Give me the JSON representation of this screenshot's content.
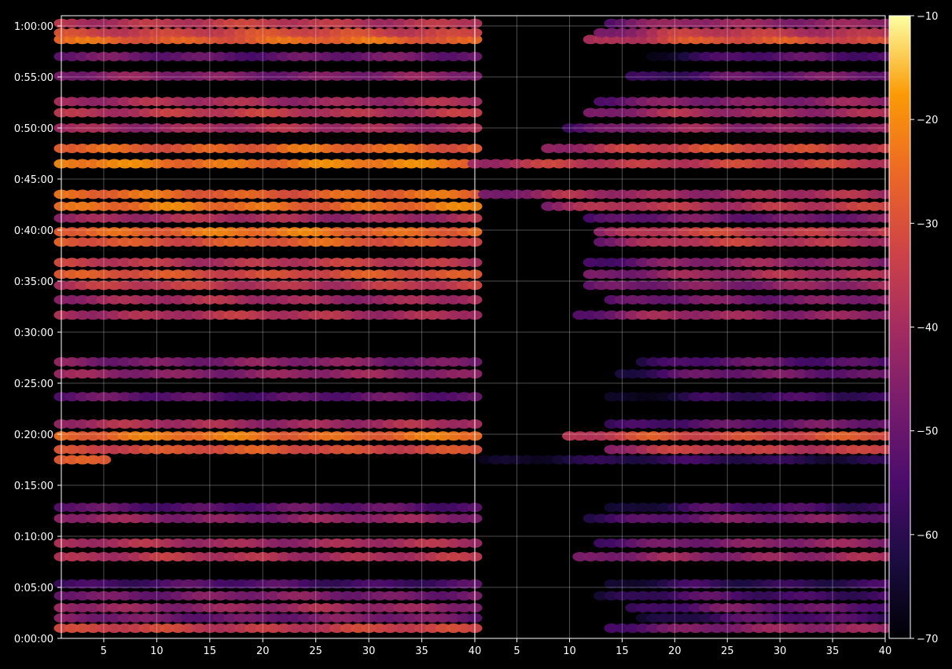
{
  "chart_data": {
    "type": "heatmap",
    "title": "",
    "xlabel": "",
    "ylabel": "",
    "panels": [
      {
        "name": "",
        "x_range": [
          1,
          40
        ],
        "x_ticks": [
          "5",
          "10",
          "15",
          "20",
          "25",
          "30",
          "35",
          "40"
        ]
      },
      {
        "name": "",
        "x_range": [
          1,
          40
        ],
        "x_ticks": [
          "5",
          "10",
          "15",
          "20",
          "25",
          "30",
          "35",
          "40"
        ]
      }
    ],
    "y_range_seconds": [
      0,
      3660
    ],
    "y_ticks": [
      "0:00:00",
      "0:05:00",
      "0:10:00",
      "0:15:00",
      "0:20:00",
      "0:25:00",
      "0:30:00",
      "0:35:00",
      "0:40:00",
      "0:45:00",
      "0:50:00",
      "0:55:00",
      "1:00:00"
    ],
    "grid": true,
    "colormap": "inferno",
    "colorbar": {
      "range": [
        -70,
        -10
      ],
      "ticks": [
        "−70",
        "−60",
        "−50",
        "−40",
        "−30",
        "−20",
        "−10"
      ]
    },
    "bands": [
      {
        "t": 60,
        "panel1": -34,
        "panel2_start": 14,
        "panel2": -44
      },
      {
        "t": 120,
        "panel1": -48,
        "panel2_start": 17,
        "panel2": -55
      },
      {
        "t": 180,
        "panel1": -42,
        "panel2_start": 16,
        "panel2": -50
      },
      {
        "t": 250,
        "panel1": -47,
        "panel2_start": 13,
        "panel2": -55
      },
      {
        "t": 320,
        "panel1": -55,
        "panel2_start": 14,
        "panel2": -58
      },
      {
        "t": 480,
        "panel1": -38,
        "panel2_start": 11,
        "panel2": -42
      },
      {
        "t": 560,
        "panel1": -40,
        "panel2_start": 13,
        "panel2": -45
      },
      {
        "t": 705,
        "panel1": -44,
        "panel2_start": 12,
        "panel2": -48
      },
      {
        "t": 770,
        "panel1": -52,
        "panel2_start": 14,
        "panel2": -56
      },
      {
        "t": 1050,
        "panel1": -28,
        "panel2_start": 1,
        "panel2": -60,
        "panel1_end": 5
      },
      {
        "t": 1110,
        "panel1": -30,
        "panel2_start": 14,
        "panel2": -34
      },
      {
        "t": 1190,
        "panel1": -24,
        "panel2_start": 10,
        "panel2": -30
      },
      {
        "t": 1260,
        "panel1": -40,
        "panel2_start": 14,
        "panel2": -50
      },
      {
        "t": 1420,
        "panel1": -52,
        "panel2_start": 14,
        "panel2": -58
      },
      {
        "t": 1555,
        "panel1": -44,
        "panel2_start": 15,
        "panel2": -50
      },
      {
        "t": 1625,
        "panel1": -46,
        "panel2_start": 17,
        "panel2": -52
      },
      {
        "t": 1900,
        "panel1": -38,
        "panel2_start": 11,
        "panel2": -42
      },
      {
        "t": 1990,
        "panel1": -40,
        "panel2_start": 14,
        "panel2": -46
      },
      {
        "t": 2075,
        "panel1": -36,
        "panel2_start": 12,
        "panel2": -44
      },
      {
        "t": 2140,
        "panel1": -30,
        "panel2_start": 12,
        "panel2": -40
      },
      {
        "t": 2210,
        "panel1": -36,
        "panel2_start": 12,
        "panel2": -44
      },
      {
        "t": 2330,
        "panel1": -28,
        "panel2_start": 13,
        "panel2": -36
      },
      {
        "t": 2390,
        "panel1": -24,
        "panel2_start": 13,
        "panel2": -34
      },
      {
        "t": 2470,
        "panel1": -40,
        "panel2_start": 12,
        "panel2": -48
      },
      {
        "t": 2540,
        "panel1": -24,
        "panel2_start": 8,
        "panel2": -36
      },
      {
        "t": 2610,
        "panel1": -26,
        "panel2_start": 2,
        "panel2": -40
      },
      {
        "t": 2790,
        "panel1": -22,
        "panel2_start": 1,
        "panel2": -34
      },
      {
        "t": 2880,
        "panel1": -26,
        "panel2_start": 8,
        "panel2": -32
      },
      {
        "t": 3000,
        "panel1": -40,
        "panel2_start": 10,
        "panel2": -44
      },
      {
        "t": 3090,
        "panel1": -36,
        "panel2_start": 12,
        "panel2": -40
      },
      {
        "t": 3155,
        "panel1": -40,
        "panel2_start": 13,
        "panel2": -44
      },
      {
        "t": 3305,
        "panel1": -46,
        "panel2_start": 16,
        "panel2": -50
      },
      {
        "t": 3420,
        "panel1": -50,
        "panel2_start": 18,
        "panel2": -54
      },
      {
        "t": 3520,
        "panel1": -26,
        "panel2_start": 12,
        "panel2": -30
      },
      {
        "t": 3560,
        "panel1": -32,
        "panel2_start": 13,
        "panel2": -36
      },
      {
        "t": 3615,
        "panel1": -36,
        "panel2_start": 14,
        "panel2": -42
      }
    ]
  }
}
